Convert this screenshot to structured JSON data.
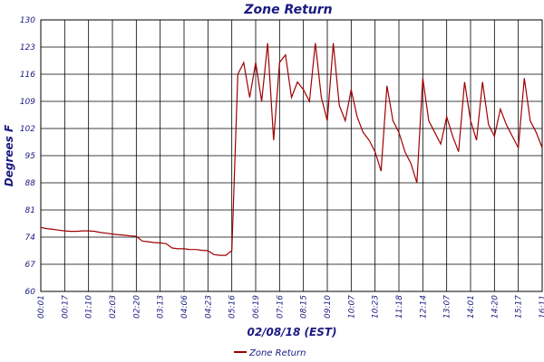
{
  "chart_data": {
    "type": "line",
    "title": "Zone Return",
    "x_label": "02/08/18 (EST)",
    "y_label": "Degrees F",
    "categories": [
      "00:01",
      null,
      null,
      null,
      "00:17",
      null,
      null,
      null,
      "01:10",
      null,
      null,
      null,
      "02:03",
      null,
      null,
      null,
      "02:20",
      null,
      null,
      null,
      "03:13",
      null,
      null,
      null,
      "04:06",
      null,
      null,
      null,
      "04:23",
      null,
      null,
      null,
      "05:16",
      null,
      null,
      null,
      "06:19",
      null,
      null,
      null,
      "07:16",
      null,
      null,
      null,
      "08:15",
      null,
      null,
      null,
      "09:10",
      null,
      null,
      null,
      "10:07",
      null,
      null,
      null,
      "10:23",
      null,
      null,
      null,
      "11:18",
      null,
      null,
      null,
      "12:14",
      null,
      null,
      null,
      "13:07",
      null,
      null,
      null,
      "14:01",
      null,
      null,
      null,
      "14:20",
      null,
      null,
      null,
      "15:17",
      null,
      null,
      null,
      "16:11"
    ],
    "series": [
      {
        "name": "Zone Return",
        "color": "#a00000",
        "values": [
          76.5,
          76.2,
          76,
          75.8,
          75.6,
          75.5,
          75.5,
          75.6,
          75.6,
          75.5,
          75.2,
          75,
          74.8,
          74.6,
          74.5,
          74.3,
          74.2,
          73,
          72.8,
          72.6,
          72.5,
          72.3,
          71.2,
          71,
          71,
          70.8,
          70.8,
          70.6,
          70.5,
          69.5,
          69.3,
          69.3,
          70.5,
          116,
          119,
          110,
          119,
          109,
          124,
          99,
          119,
          121,
          110,
          114,
          112,
          109,
          124,
          110,
          104,
          124,
          108,
          104,
          112,
          105,
          101,
          99,
          96,
          91,
          113,
          104,
          101,
          96,
          93,
          88,
          115,
          104,
          101,
          98,
          105,
          100,
          96,
          114,
          104,
          99,
          114,
          103,
          100,
          107,
          103,
          100,
          97,
          115,
          104,
          101,
          97
        ]
      }
    ],
    "ylim": [
      60,
      130
    ],
    "yticks": [
      60,
      67,
      74,
      81,
      88,
      95,
      102,
      109,
      116,
      123,
      130
    ],
    "grid": true,
    "legend": "bottom"
  }
}
